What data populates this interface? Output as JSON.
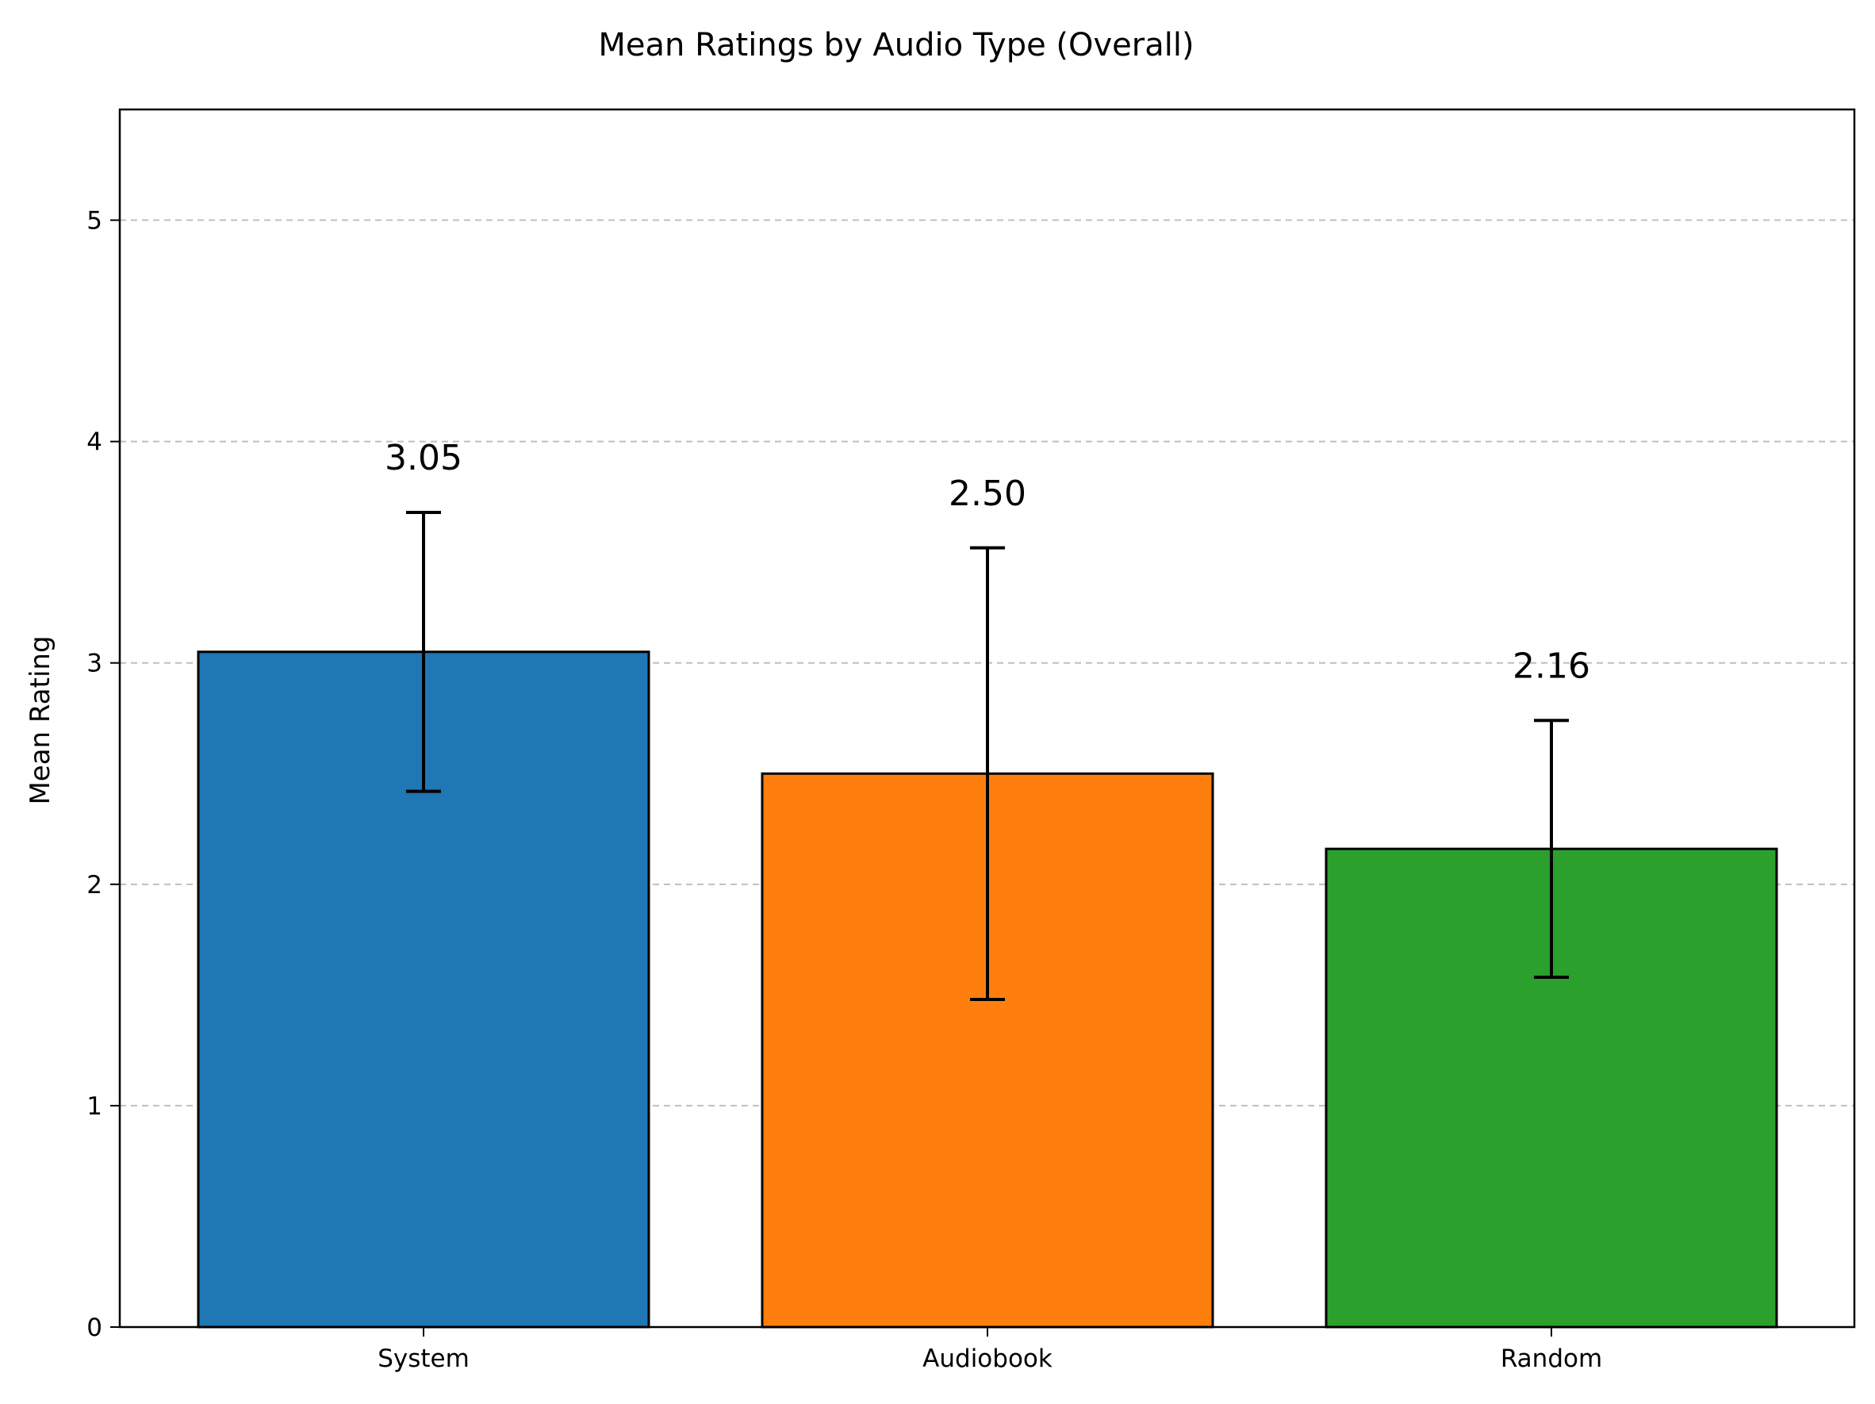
{
  "chart_data": {
    "type": "bar",
    "title": "Mean Ratings by Audio Type (Overall)",
    "xlabel": "",
    "ylabel": "Mean Rating",
    "categories": [
      "System",
      "Audiobook",
      "Random"
    ],
    "values": [
      3.05,
      2.5,
      2.16
    ],
    "value_labels": [
      "3.05",
      "2.50",
      "2.16"
    ],
    "error": [
      0.63,
      1.02,
      0.58
    ],
    "colors": [
      "#1f77b4",
      "#ff7f0e",
      "#2ca02c"
    ],
    "ylim": [
      0,
      5.5
    ],
    "yticks": [
      0,
      1,
      2,
      3,
      4,
      5
    ],
    "ytick_labels": [
      "0",
      "1",
      "2",
      "3",
      "4",
      "5"
    ],
    "grid": "y-dashed",
    "legend": "none"
  }
}
